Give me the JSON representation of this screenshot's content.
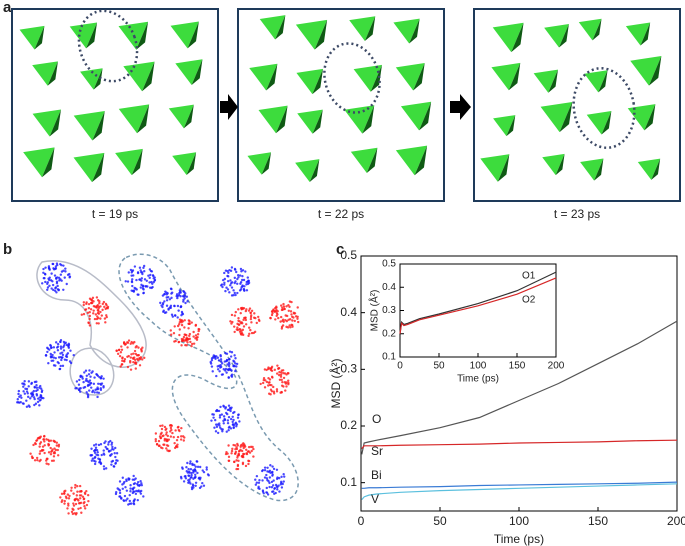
{
  "panels": {
    "a": {
      "label": "a",
      "captions": [
        "t = 19 ps",
        "t = 22 ps",
        "t = 23 ps"
      ]
    },
    "b": {
      "label": "b"
    },
    "c": {
      "label": "c"
    }
  },
  "chart_data": [
    {
      "type": "line",
      "x_label": "Time (ps)",
      "y_label": "MSD (Å²)",
      "x": [
        0.5,
        2,
        5,
        10,
        25,
        50,
        75,
        100,
        125,
        150,
        175,
        200
      ],
      "series": [
        {
          "name": "O",
          "color": "#555555",
          "values": [
            0.15,
            0.17,
            0.172,
            0.175,
            0.183,
            0.197,
            0.215,
            0.245,
            0.275,
            0.31,
            0.345,
            0.385
          ]
        },
        {
          "name": "Sr",
          "color": "#d62728",
          "values": [
            0.16,
            0.165,
            0.165,
            0.165,
            0.166,
            0.167,
            0.168,
            0.17,
            0.171,
            0.172,
            0.174,
            0.175
          ]
        },
        {
          "name": "Bi",
          "color": "#3a7bd5",
          "values": [
            0.09,
            0.09,
            0.091,
            0.091,
            0.092,
            0.093,
            0.095,
            0.096,
            0.097,
            0.098,
            0.099,
            0.101
          ]
        },
        {
          "name": "V",
          "color": "#5bc0de",
          "values": [
            0.07,
            0.075,
            0.078,
            0.08,
            0.083,
            0.086,
            0.088,
            0.09,
            0.092,
            0.094,
            0.096,
            0.098
          ]
        }
      ],
      "xlim": [
        0,
        200
      ],
      "xticks": [
        0,
        50,
        100,
        150,
        200
      ],
      "ylim": [
        0.05,
        0.5
      ],
      "yticks": [
        0.1,
        0.2,
        0.3,
        0.4,
        0.5
      ]
    },
    {
      "type": "line",
      "x_label": "Time (ps)",
      "y_label": "MSD (Å²)",
      "x": [
        0,
        2,
        5,
        10,
        25,
        50,
        100,
        150,
        200
      ],
      "series": [
        {
          "name": "O1",
          "color": "#333333",
          "values": [
            0.2,
            0.25,
            0.24,
            0.245,
            0.265,
            0.285,
            0.33,
            0.385,
            0.465
          ]
        },
        {
          "name": "O2",
          "color": "#d62728",
          "values": [
            0.2,
            0.245,
            0.235,
            0.24,
            0.26,
            0.28,
            0.32,
            0.37,
            0.44
          ]
        }
      ],
      "xlim": [
        0,
        200
      ],
      "xticks": [
        0,
        50,
        100,
        150,
        200
      ],
      "ylim": [
        0.1,
        0.5
      ],
      "yticks": [
        0.1,
        0.2,
        0.3,
        0.4,
        0.5
      ]
    }
  ]
}
